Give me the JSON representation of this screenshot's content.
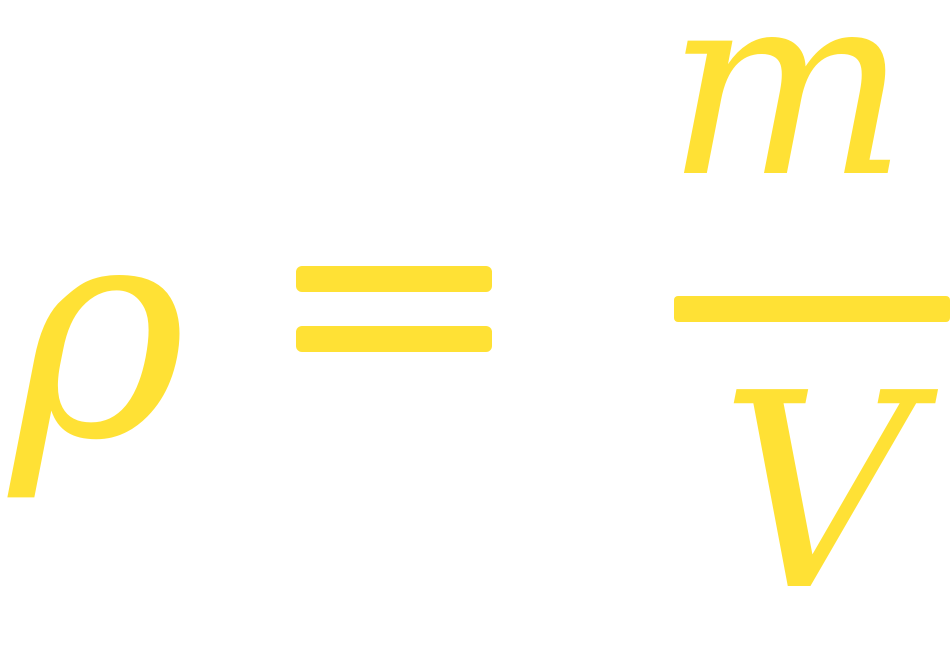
{
  "formula": {
    "lhs": "ρ",
    "operator": "=",
    "numerator": "m",
    "denominator": "V",
    "color": "#FFE135"
  }
}
